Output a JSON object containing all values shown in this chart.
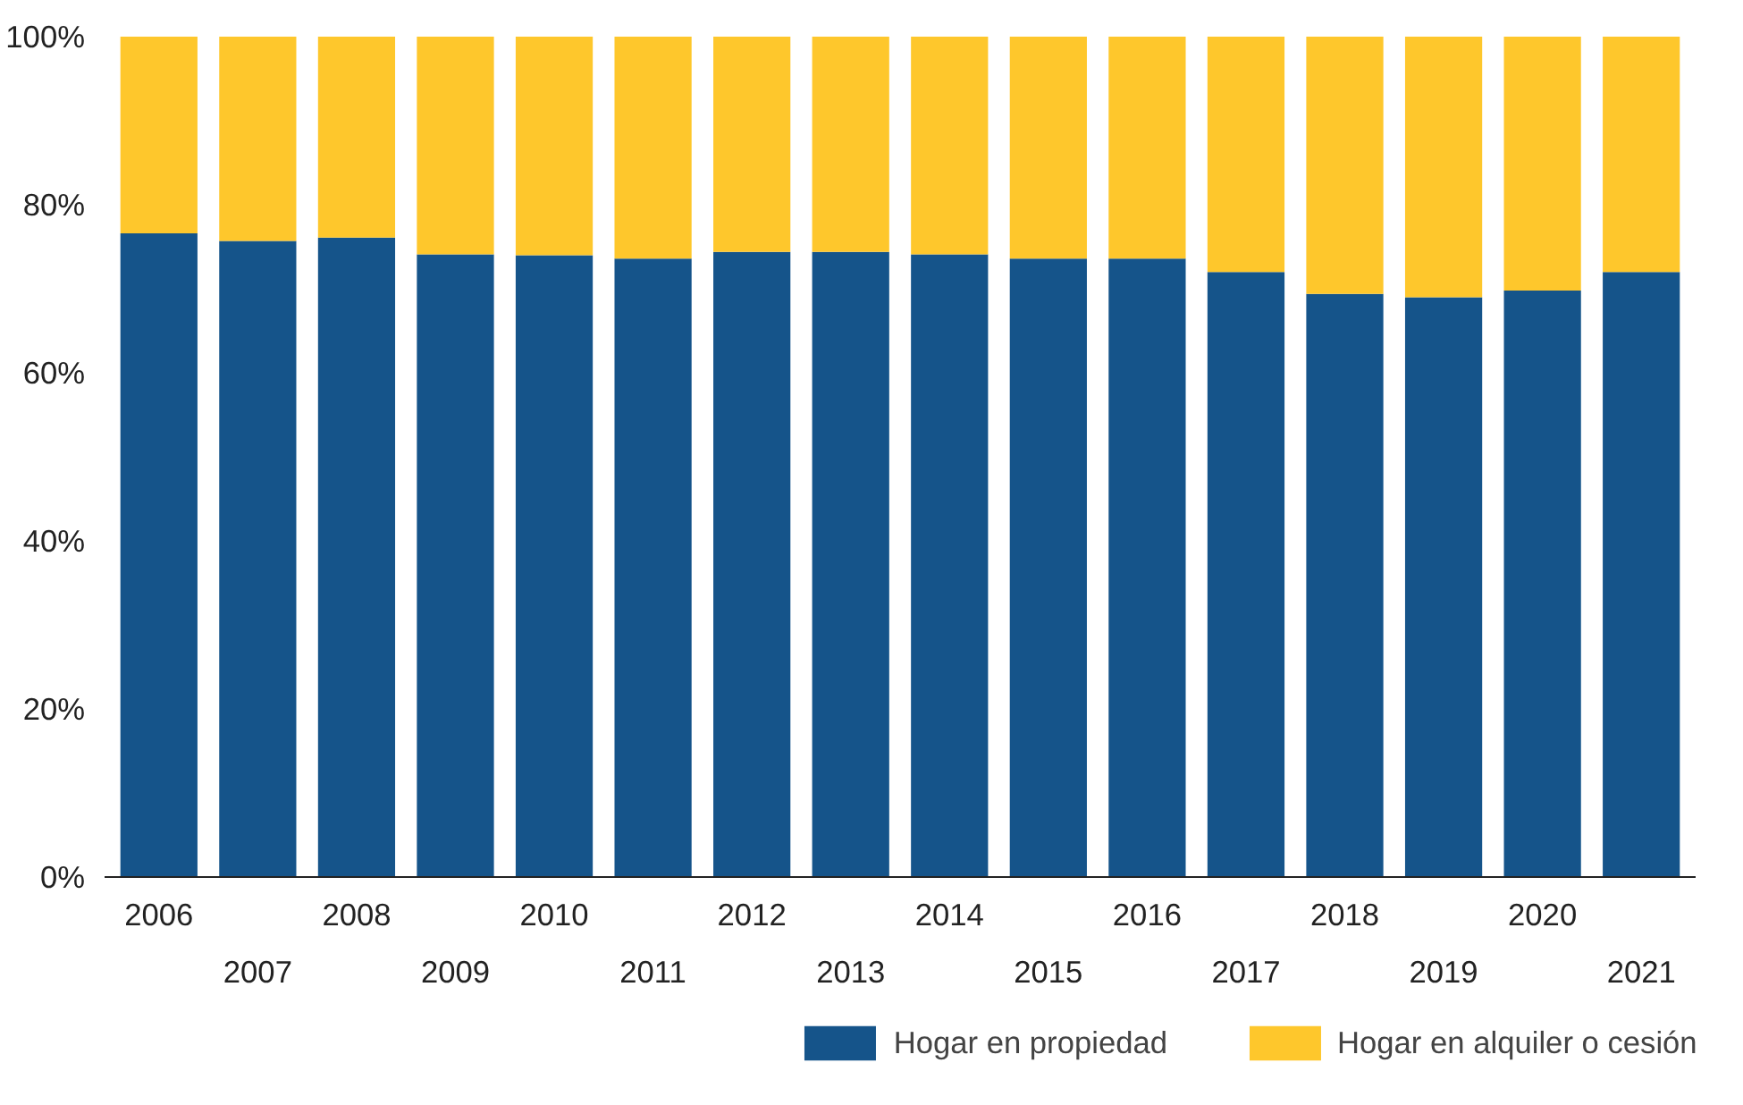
{
  "chart_data": {
    "type": "bar",
    "stacked": true,
    "categories": [
      "2006",
      "2007",
      "2008",
      "2009",
      "2010",
      "2011",
      "2012",
      "2013",
      "2014",
      "2015",
      "2016",
      "2017",
      "2018",
      "2019",
      "2020",
      "2021"
    ],
    "series": [
      {
        "name": "Hogar en propiedad",
        "color": "#15548a",
        "values": [
          76.6,
          75.7,
          76.1,
          74.1,
          74.0,
          73.6,
          74.4,
          74.4,
          74.1,
          73.6,
          73.6,
          72.0,
          69.4,
          69.0,
          69.8,
          72.0
        ]
      },
      {
        "name": "Hogar en alquiler o cesión",
        "color": "#fec72c",
        "values": [
          23.4,
          24.3,
          23.9,
          25.9,
          26.0,
          26.4,
          25.6,
          25.6,
          25.9,
          26.4,
          26.4,
          28.0,
          30.6,
          31.0,
          30.2,
          28.0
        ]
      }
    ],
    "ylim": [
      0,
      100
    ],
    "yticks": [
      {
        "value": 0,
        "label": "0%"
      },
      {
        "value": 20,
        "label": "20%"
      },
      {
        "value": 40,
        "label": "40%"
      },
      {
        "value": 60,
        "label": "60%"
      },
      {
        "value": 80,
        "label": "80%"
      },
      {
        "value": 100,
        "label": "100%"
      }
    ],
    "grid": false,
    "legend": "bottom right"
  }
}
